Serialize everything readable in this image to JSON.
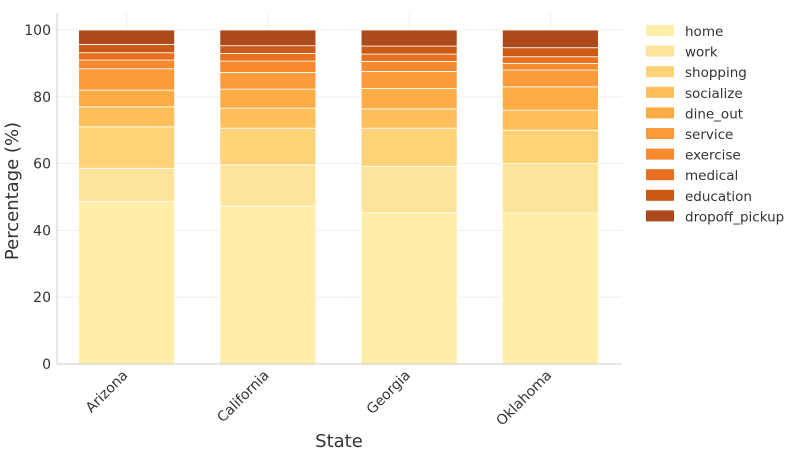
{
  "chart_data": {
    "type": "bar",
    "stacked": true,
    "title": "",
    "xlabel": "State",
    "ylabel": "Percentage (%)",
    "ylim": [
      0,
      100
    ],
    "yticks": [
      0,
      20,
      40,
      60,
      80,
      100
    ],
    "grid": true,
    "legend_position": "right",
    "categories": [
      "Arizona",
      "California",
      "Georgia",
      "Oklahoma"
    ],
    "series": [
      {
        "name": "home",
        "color": "#ffeda8",
        "values": [
          48.6,
          47.3,
          45.3,
          45.2
        ]
      },
      {
        "name": "work",
        "color": "#fee39a",
        "values": [
          10.0,
          12.3,
          13.9,
          14.8
        ]
      },
      {
        "name": "shopping",
        "color": "#fed277",
        "values": [
          12.4,
          11.0,
          11.4,
          10.0
        ]
      },
      {
        "name": "socialize",
        "color": "#febe5a",
        "values": [
          6.0,
          6.0,
          5.8,
          6.0
        ]
      },
      {
        "name": "dine_out",
        "color": "#fead46",
        "values": [
          5.0,
          5.7,
          6.1,
          7.0
        ]
      },
      {
        "name": "service",
        "color": "#fd9b3c",
        "values": [
          6.4,
          5.0,
          5.1,
          5.0
        ]
      },
      {
        "name": "exercise",
        "color": "#f7892f",
        "values": [
          2.6,
          3.4,
          3.0,
          2.0
        ]
      },
      {
        "name": "medical",
        "color": "#e8701f",
        "values": [
          2.2,
          2.3,
          2.2,
          2.0
        ]
      },
      {
        "name": "education",
        "color": "#cc5a17",
        "values": [
          2.5,
          2.3,
          2.4,
          2.7
        ]
      },
      {
        "name": "dropoff_pickup",
        "color": "#ad4a1c",
        "values": [
          4.3,
          4.7,
          4.8,
          5.3
        ]
      }
    ]
  }
}
